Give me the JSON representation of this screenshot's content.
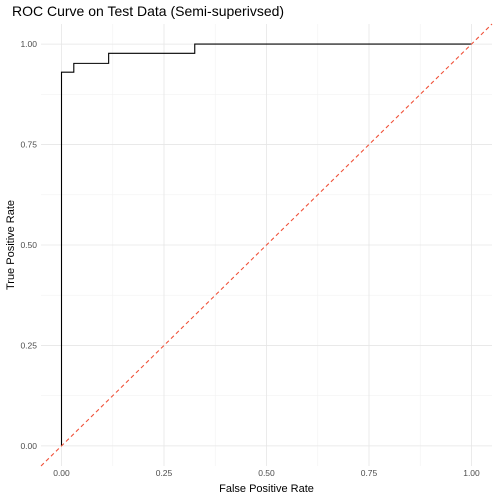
{
  "chart_data": {
    "type": "line",
    "title": "ROC Curve on Test Data (Semi-superivsed)",
    "xlabel": "False Positive Rate",
    "ylabel": "True Positive Rate",
    "xlim": [
      0,
      1
    ],
    "ylim": [
      0,
      1
    ],
    "x_ticks": [
      0.0,
      0.25,
      0.5,
      0.75,
      1.0
    ],
    "y_ticks": [
      0.0,
      0.25,
      0.5,
      0.75,
      1.0
    ],
    "x_tick_labels": [
      "0.00",
      "0.25",
      "0.50",
      "0.75",
      "1.00"
    ],
    "y_tick_labels": [
      "0.00",
      "0.25",
      "0.50",
      "0.75",
      "1.00"
    ],
    "grid": true,
    "series": [
      {
        "step": true,
        "color": "#000000",
        "x": [
          0.0,
          0.0,
          0.03,
          0.03,
          0.115,
          0.115,
          0.325,
          0.325,
          1.0
        ],
        "y": [
          0.0,
          0.93,
          0.93,
          0.952,
          0.952,
          0.977,
          0.977,
          1.0,
          1.0
        ]
      },
      {
        "reference": true,
        "color": "#f0523a",
        "dashed": true,
        "x": [
          -0.05,
          1.05
        ],
        "y": [
          -0.05,
          1.05
        ]
      }
    ]
  }
}
